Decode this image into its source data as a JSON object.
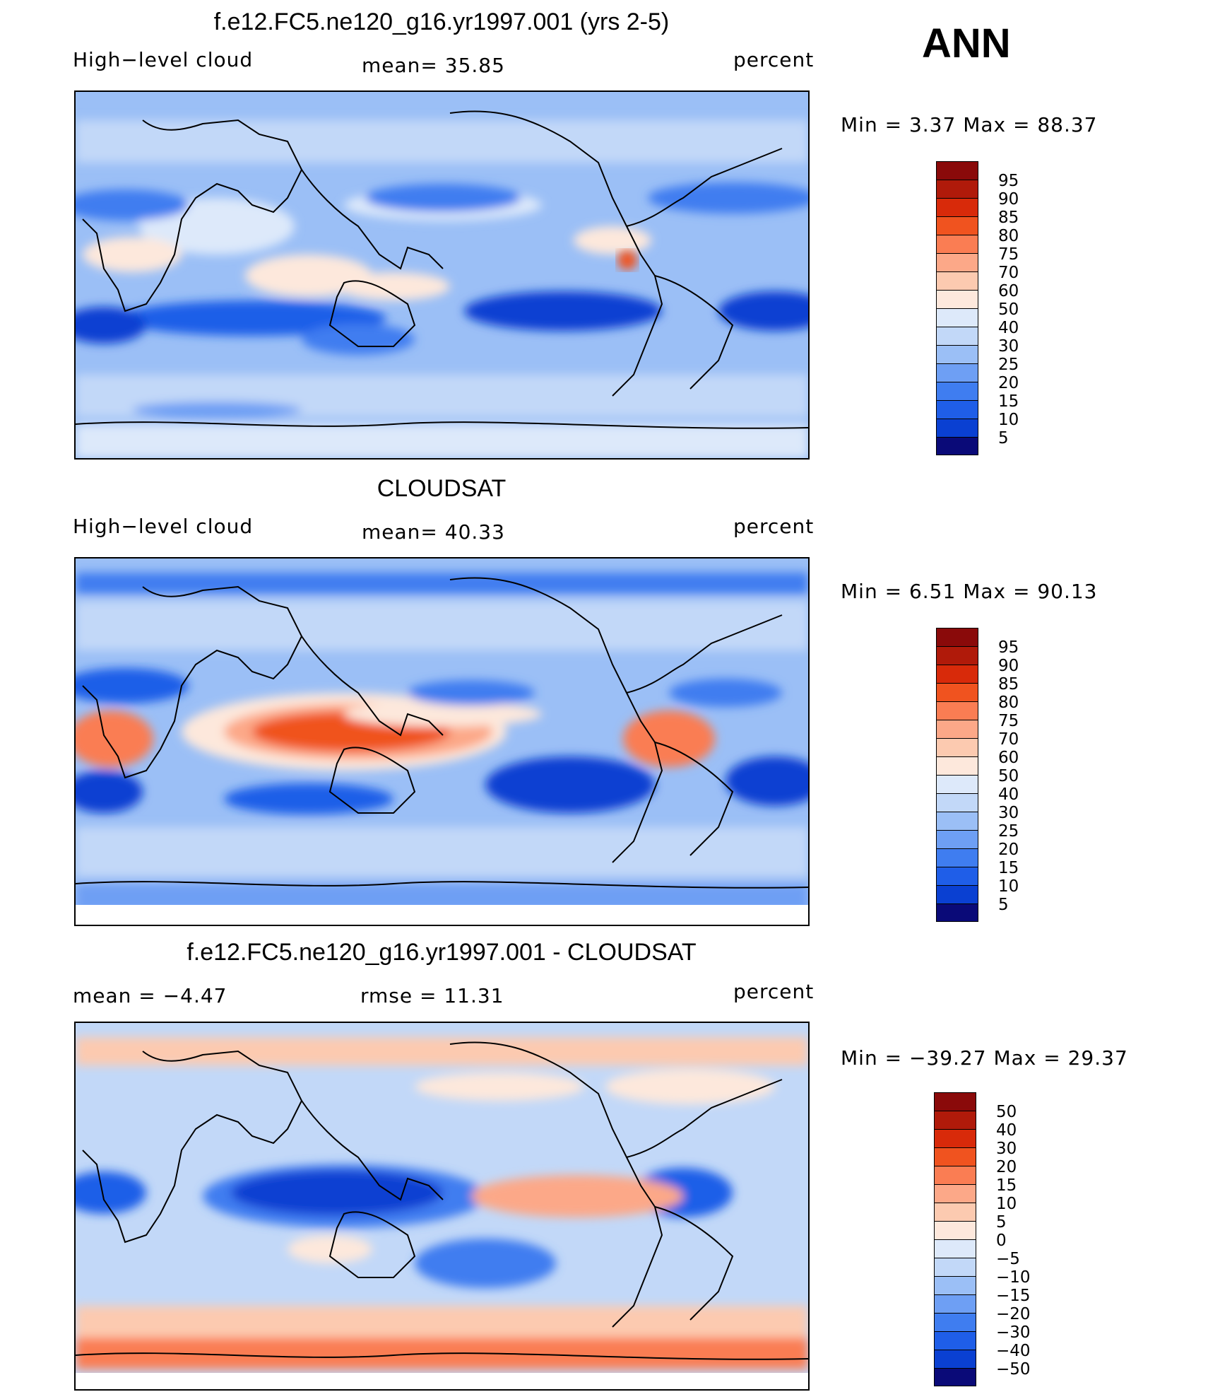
{
  "season": "ANN",
  "colors": {
    "scale": [
      "#0a0a78",
      "#0526a8",
      "#0a40d2",
      "#1f5ee8",
      "#3f7df0",
      "#6e9ff4",
      "#9bbff6",
      "#c2d8f8",
      "#dde9fa",
      "#fde8dc",
      "#fccab0",
      "#fca888",
      "#fa7d53",
      "#f0531f",
      "#d82a0a",
      "#b01a0a",
      "#8a0a0a"
    ]
  },
  "panels": [
    {
      "title": "f.e12.FC5.ne120_g16.yr1997.001 (yrs 2-5)",
      "left": "High−level cloud",
      "center": "mean=   35.85",
      "right": "percent",
      "minmax": "Min  =     3.37  Max  =    88.37",
      "colorbar_labels": [
        "95",
        "90",
        "85",
        "80",
        "75",
        "70",
        "60",
        "50",
        "40",
        "30",
        "25",
        "20",
        "15",
        "10",
        "5"
      ]
    },
    {
      "title": "CLOUDSAT",
      "left": "High−level cloud",
      "center": "mean=   40.33",
      "right": "percent",
      "minmax": "Min  =     6.51  Max  =    90.13",
      "colorbar_labels": [
        "95",
        "90",
        "85",
        "80",
        "75",
        "70",
        "60",
        "50",
        "40",
        "30",
        "25",
        "20",
        "15",
        "10",
        "5"
      ]
    },
    {
      "title": "f.e12.FC5.ne120_g16.yr1997.001 - CLOUDSAT",
      "left": "mean  =    −4.47",
      "center": "rmse  =    11.31",
      "right": "percent",
      "minmax": "Min  = −39.27  Max  =    29.37",
      "colorbar_labels": [
        "50",
        "40",
        "30",
        "20",
        "15",
        "10",
        "5",
        "0",
        "−5",
        "−10",
        "−15",
        "−20",
        "−30",
        "−40",
        "−50"
      ]
    }
  ],
  "chart_data": [
    {
      "type": "heatmap",
      "title": "f.e12.FC5.ne120_g16.yr1997.001 (yrs 2-5)",
      "variable": "High-level cloud",
      "units": "percent",
      "mean": 35.85,
      "min": 3.37,
      "max": 88.37,
      "contour_levels": [
        5,
        10,
        15,
        20,
        25,
        30,
        40,
        50,
        60,
        70,
        75,
        80,
        85,
        90,
        95
      ],
      "map_projection": "cylindrical equidistant, Pacific-centered"
    },
    {
      "type": "heatmap",
      "title": "CLOUDSAT",
      "variable": "High-level cloud",
      "units": "percent",
      "mean": 40.33,
      "min": 6.51,
      "max": 90.13,
      "contour_levels": [
        5,
        10,
        15,
        20,
        25,
        30,
        40,
        50,
        60,
        70,
        75,
        80,
        85,
        90,
        95
      ],
      "map_projection": "cylindrical equidistant, Pacific-centered"
    },
    {
      "type": "heatmap",
      "title": "f.e12.FC5.ne120_g16.yr1997.001 - CLOUDSAT",
      "units": "percent",
      "mean": -4.47,
      "rmse": 11.31,
      "min": -39.27,
      "max": 29.37,
      "contour_levels": [
        -50,
        -40,
        -30,
        -20,
        -15,
        -10,
        -5,
        0,
        5,
        10,
        15,
        20,
        30,
        40,
        50
      ],
      "map_projection": "cylindrical equidistant, Pacific-centered"
    }
  ]
}
